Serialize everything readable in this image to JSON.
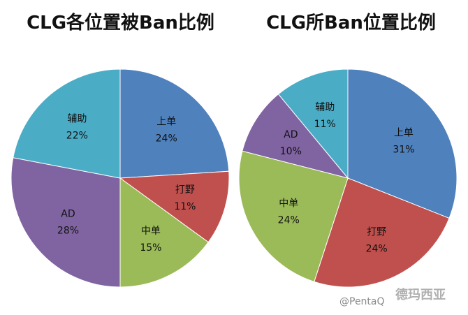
{
  "chart_data": [
    {
      "type": "pie",
      "title": "CLG各位置被Ban比例",
      "slices": [
        {
          "label": "上单",
          "value": 24,
          "display": "24%",
          "color": "#4f81bd"
        },
        {
          "label": "打野",
          "value": 11,
          "display": "11%",
          "color": "#c0504d"
        },
        {
          "label": "中单",
          "value": 15,
          "display": "15%",
          "color": "#9bbb59"
        },
        {
          "label": "AD",
          "value": 28,
          "display": "28%",
          "color": "#8064a2"
        },
        {
          "label": "辅助",
          "value": 22,
          "display": "22%",
          "color": "#4bacc6"
        }
      ]
    },
    {
      "type": "pie",
      "title": "CLG所Ban位置比例",
      "slices": [
        {
          "label": "上单",
          "value": 31,
          "display": "31%",
          "color": "#4f81bd"
        },
        {
          "label": "打野",
          "value": 24,
          "display": "24%",
          "color": "#c0504d"
        },
        {
          "label": "中单",
          "value": 24,
          "display": "24%",
          "color": "#9bbb59"
        },
        {
          "label": "AD",
          "value": 10,
          "display": "10%",
          "color": "#8064a2"
        },
        {
          "label": "辅助",
          "value": 11,
          "display": "11%",
          "color": "#4bacc6"
        }
      ]
    }
  ],
  "watermark": "@PentaQ",
  "logo": "德玛西亚"
}
